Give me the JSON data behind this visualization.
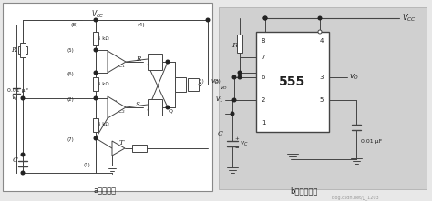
{
  "bg_color": "#e8e8e8",
  "left_panel_bg": "#ffffff",
  "right_panel_bg": "#d8d8d8",
  "title_a": "a）电路图",
  "title_b": "b）简化电路",
  "watermark": "blog.csdn.net/小_1203",
  "line_color": "#444444",
  "text_color": "#222222"
}
